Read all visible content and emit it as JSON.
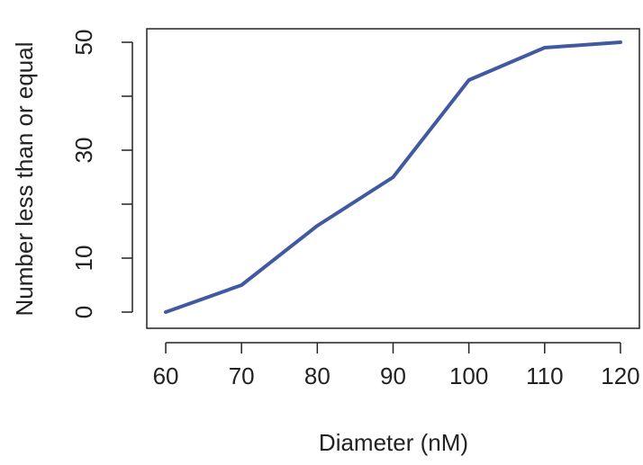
{
  "chart_data": {
    "type": "line",
    "title": "",
    "xlabel": "Diameter (nM)",
    "ylabel": "Number less than or equal",
    "x": [
      60,
      70,
      80,
      90,
      100,
      110,
      120
    ],
    "series": [
      {
        "values": [
          0,
          5,
          16,
          25,
          43,
          49,
          50
        ],
        "color": "#4159a0"
      }
    ],
    "xticks": [
      60,
      70,
      80,
      90,
      100,
      110,
      120
    ],
    "yticks": [
      0,
      10,
      20,
      30,
      40,
      50
    ],
    "ytick_labels": [
      "0",
      "10",
      "",
      "30",
      "",
      "50"
    ],
    "xlim": [
      57.5,
      122.5
    ],
    "ylim": [
      -3.0,
      52.5
    ],
    "grid": false,
    "legend": "none"
  }
}
